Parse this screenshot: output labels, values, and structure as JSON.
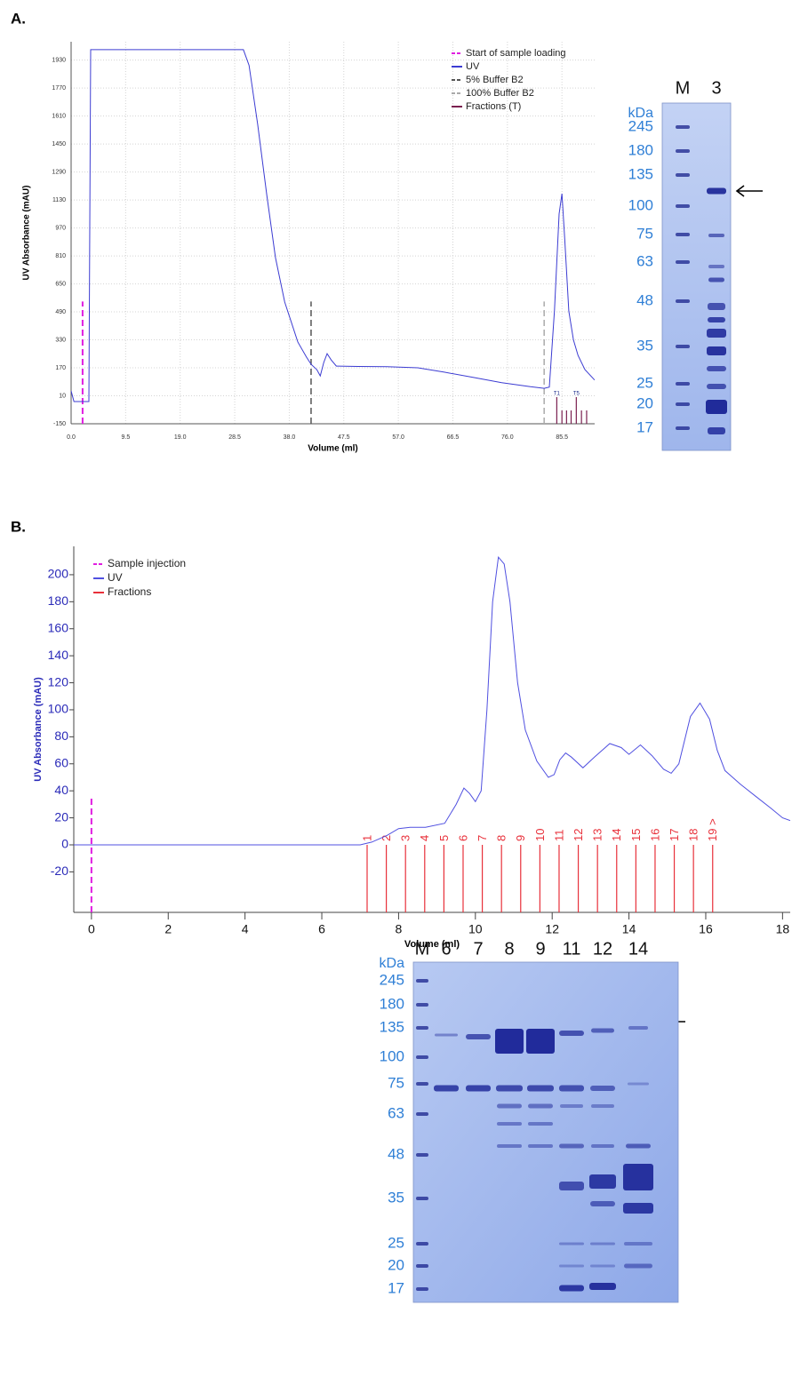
{
  "panel_labels": [
    "A.",
    "B."
  ],
  "chart_data": [
    {
      "type": "line",
      "y_label": "UV Absorbance (mAU)",
      "x_label": "Volume (ml)",
      "xlim": [
        0,
        91.2
      ],
      "ylim": [
        -150,
        2035
      ],
      "xticks": [
        {
          "value": 0,
          "label": "0.0"
        },
        9.5,
        {
          "value": 19,
          "label": "19.0"
        },
        28.5,
        {
          "value": 38,
          "label": "38.0"
        },
        47.5,
        {
          "value": 57,
          "label": "57.0"
        },
        66.5,
        {
          "value": 76,
          "label": "76.0"
        },
        85.5
      ],
      "yticks": [
        -150,
        10,
        170,
        330,
        490,
        650,
        810,
        970,
        1130,
        1290,
        1450,
        1610,
        1770,
        1930
      ],
      "grid": true,
      "legend": "top-right",
      "series": [
        {
          "name": "UV",
          "color": "#3c3cd2",
          "x": [
            0,
            0.5,
            2.6,
            3.1,
            3.4,
            30.0,
            31.0,
            32.5,
            34.1,
            35.6,
            37.2,
            39.5,
            41.0,
            41.8,
            42.8,
            43.4,
            44.0,
            44.6,
            45.3,
            46.2,
            50,
            55,
            60.4,
            65,
            70,
            75,
            80,
            82.4,
            83.3,
            84.2,
            85.0,
            85.5,
            86.0,
            86.7,
            87.5,
            88.3,
            89.5,
            91.2
          ],
          "values": [
            38,
            -23,
            -23,
            -23,
            1990,
            1990,
            1900,
            1562,
            1156,
            800,
            546,
            317,
            231,
            190,
            160,
            124,
            200,
            251,
            215,
            180,
            178,
            176,
            170,
            145,
            115,
            85,
            62,
            53,
            60,
            500,
            1050,
            1166,
            900,
            495,
            330,
            241,
            160,
            100
          ]
        }
      ],
      "markers": [
        {
          "name": "Start of sample loading",
          "color": "#e01ee0",
          "x": 2.0
        },
        {
          "name": "5% Buffer B2",
          "color": "#555555",
          "x": 41.8
        },
        {
          "name": "100% Buffer B2",
          "color": "#aaaaaa",
          "x": 82.4
        }
      ],
      "fractions": {
        "name": "Fractions (T)",
        "color": "#7a1f4f",
        "x": [
          84.6,
          85.5,
          86.3,
          87.1,
          88.0,
          88.9,
          89.8
        ],
        "labels": [
          "T1",
          null,
          null,
          null,
          "T5",
          null,
          null
        ]
      }
    },
    {
      "type": "line",
      "y_label": "UV Absorbance (mAU)",
      "x_label": "Volume (ml)",
      "xlim": [
        -0.46,
        18.2
      ],
      "ylim": [
        -50,
        221
      ],
      "xticks": [
        0,
        2,
        4,
        6,
        8,
        10,
        12,
        14,
        16,
        18
      ],
      "yticks": [
        -20,
        0,
        20,
        40,
        60,
        80,
        100,
        120,
        140,
        160,
        180,
        200
      ],
      "grid": false,
      "legend": "top-left",
      "series": [
        {
          "name": "UV",
          "color": "#5050e0",
          "x": [
            -0.46,
            7.0,
            7.3,
            7.7,
            8.0,
            8.3,
            8.7,
            9.2,
            9.5,
            9.7,
            9.85,
            10.0,
            10.15,
            10.3,
            10.45,
            10.6,
            10.75,
            10.9,
            11.1,
            11.3,
            11.6,
            11.9,
            12.05,
            12.2,
            12.35,
            12.5,
            12.8,
            13.1,
            13.5,
            13.8,
            14.0,
            14.3,
            14.6,
            14.9,
            15.1,
            15.3,
            15.6,
            15.85,
            16.1,
            16.3,
            16.5,
            16.7,
            16.9,
            17.3,
            17.7,
            18.0,
            18.2
          ],
          "values": [
            0,
            0,
            2,
            7,
            12,
            13,
            13,
            16,
            30,
            42,
            38,
            32,
            40,
            100,
            180,
            213,
            208,
            180,
            120,
            85,
            62,
            50,
            52,
            63,
            68,
            65,
            57,
            65,
            75,
            72,
            67,
            74,
            66,
            56,
            53,
            60,
            95,
            105,
            93,
            70,
            55,
            50,
            45,
            36,
            27,
            20,
            18
          ]
        }
      ],
      "markers": [
        {
          "name": "Sample injection",
          "color": "#e01ee0",
          "x": 0
        }
      ],
      "fractions": {
        "name": "Fractions",
        "color": "#e8303a",
        "x": [
          7.18,
          7.68,
          8.18,
          8.68,
          9.18,
          9.68,
          10.18,
          10.68,
          11.18,
          11.68,
          12.18,
          12.68,
          13.18,
          13.68,
          14.18,
          14.68,
          15.18,
          15.68,
          16.18
        ],
        "labels": [
          "1",
          "2",
          "3",
          "4",
          "5",
          "6",
          "7",
          "8",
          "9",
          "10",
          "11",
          "12",
          "13",
          "14",
          "15",
          "16",
          "17",
          "18",
          "19 >"
        ]
      }
    }
  ],
  "gels": [
    {
      "lanes": [
        "M",
        "3"
      ],
      "unit": "kDa",
      "markers": [
        245,
        180,
        135,
        100,
        75,
        63,
        48,
        35,
        25,
        20,
        17
      ]
    },
    {
      "lanes": [
        "M",
        "6",
        "7",
        "8",
        "9",
        "11",
        "12",
        "14"
      ],
      "unit": "kDa",
      "markers": [
        245,
        180,
        135,
        100,
        75,
        63,
        48,
        35,
        25,
        20,
        17
      ]
    }
  ]
}
